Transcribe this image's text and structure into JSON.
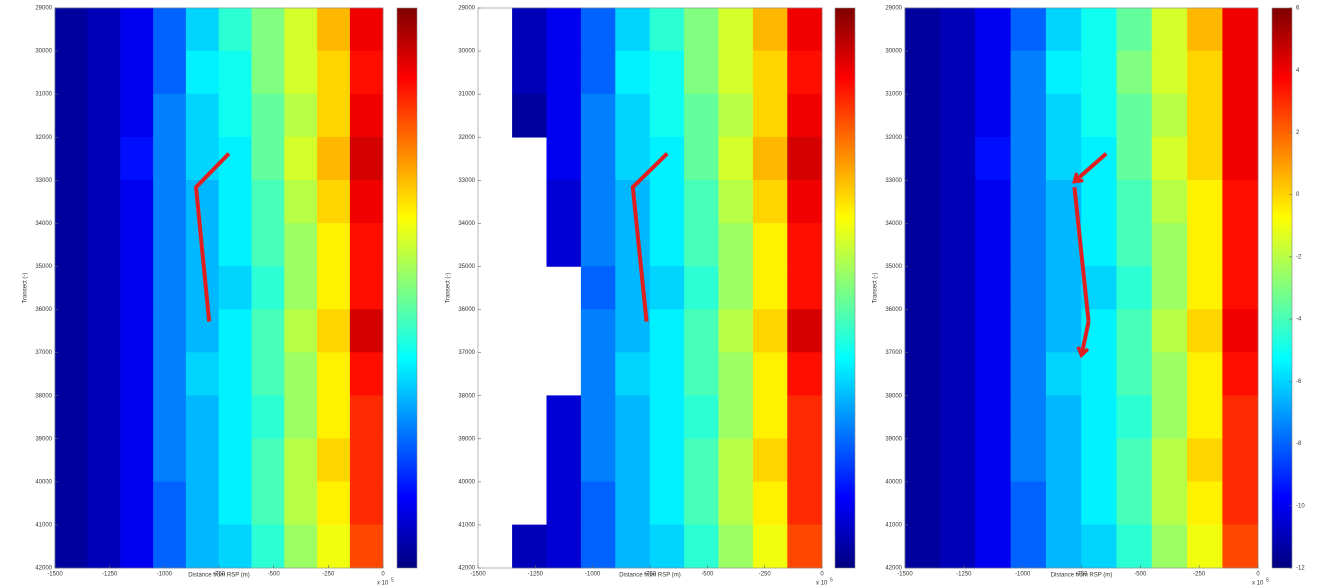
{
  "chart_data": [
    {
      "type": "heatmap",
      "colormap": "jet",
      "y_reversed": true,
      "xlabel": "Distance from RSP (m)",
      "ylabel": "Transect (-)",
      "x_multiplier": "x 10",
      "x_exponent": "5",
      "xlim": [
        -1500,
        0
      ],
      "ylim": [
        29000,
        42000
      ],
      "zlim": [
        -12,
        6
      ],
      "xticks": [
        -1500,
        -1250,
        -1000,
        -750,
        -500,
        -250,
        0
      ],
      "yticks": [
        29000,
        30000,
        31000,
        32000,
        33000,
        34000,
        35000,
        36000,
        37000,
        38000,
        39000,
        40000,
        41000,
        42000
      ],
      "x": [
        -1425,
        -1275,
        -1125,
        -975,
        -825,
        -675,
        -525,
        -375,
        -225,
        -75
      ],
      "y": [
        29500,
        30500,
        31500,
        32500,
        33500,
        34500,
        35500,
        36500,
        37500,
        38500,
        39500,
        40500,
        41500
      ],
      "z": [
        [
          -11.5,
          -11,
          -10,
          -8,
          -6,
          -4.5,
          -3,
          -1.5,
          0.5,
          4
        ],
        [
          -11.5,
          -11,
          -10,
          -8,
          -5.5,
          -5,
          -3,
          -1.5,
          0,
          3.5
        ],
        [
          -11.5,
          -11,
          -10,
          -7.5,
          -6,
          -5,
          -3.5,
          -2,
          0,
          4
        ],
        [
          -11.5,
          -11,
          -9.5,
          -7.5,
          -6,
          -5.5,
          -3.5,
          -1.5,
          0.5,
          4.5
        ],
        [
          -11.5,
          -11,
          -10,
          -7.5,
          -6.5,
          -5.5,
          -4,
          -2,
          0,
          4
        ],
        [
          -11.5,
          -11,
          -10,
          -7.5,
          -6.5,
          -5.5,
          -4,
          -2.5,
          -0.5,
          3.5
        ],
        [
          -11.5,
          -11,
          -10,
          -7.5,
          -6.5,
          -6,
          -4.5,
          -2.5,
          -0.5,
          3.5
        ],
        [
          -11.5,
          -11,
          -10,
          -7.5,
          -6.5,
          -5.5,
          -4,
          -2,
          0,
          4.5
        ],
        [
          -11.5,
          -11,
          -10,
          -7.5,
          -6,
          -5.5,
          -4,
          -2.5,
          -0.5,
          3.5
        ],
        [
          -11.5,
          -11,
          -10,
          -7.5,
          -6.5,
          -5.5,
          -4.5,
          -2.5,
          -0.5,
          3
        ],
        [
          -11.5,
          -11,
          -10,
          -7.5,
          -6.5,
          -5.5,
          -4,
          -2,
          0,
          3
        ],
        [
          -11.5,
          -11,
          -10,
          -8,
          -6.5,
          -5.5,
          -4,
          -2,
          -0.5,
          3
        ],
        [
          -11.5,
          -11,
          -10,
          -8,
          -6.5,
          -6,
          -4.5,
          -2.5,
          -1,
          2.5
        ]
      ]
    },
    {
      "type": "heatmap",
      "colormap": "jet",
      "y_reversed": true,
      "xlabel": "Distance from RSP (m)",
      "ylabel": "Transect (-)",
      "x_multiplier": "x 10",
      "x_exponent": "5",
      "xlim": [
        -1500,
        0
      ],
      "ylim": [
        29000,
        42000
      ],
      "zlim": [
        -12,
        6
      ],
      "xticks": [
        -1500,
        -1250,
        -1000,
        -750,
        -500,
        -250,
        0
      ],
      "yticks": [
        29000,
        30000,
        31000,
        32000,
        33000,
        34000,
        35000,
        36000,
        37000,
        38000,
        39000,
        40000,
        41000,
        42000
      ],
      "x": [
        -1425,
        -1275,
        -1125,
        -975,
        -825,
        -675,
        -525,
        -375,
        -225,
        -75
      ],
      "y": [
        29500,
        30500,
        31500,
        32500,
        33500,
        34500,
        35500,
        36500,
        37500,
        38500,
        39500,
        40500,
        41500
      ],
      "z": [
        [
          null,
          -11,
          -10,
          -8,
          -6,
          -4.5,
          -3,
          -1.5,
          0.5,
          4
        ],
        [
          null,
          -11,
          -10,
          -8,
          -5.5,
          -5,
          -3,
          -1.5,
          0,
          3.5
        ],
        [
          null,
          -11.5,
          -10,
          -7.5,
          -6,
          -5,
          -3.5,
          -2,
          0,
          4
        ],
        [
          null,
          null,
          -10,
          -7.5,
          -6,
          -5.5,
          -3.5,
          -1.5,
          0.5,
          4.5
        ],
        [
          null,
          null,
          -10.5,
          -7.5,
          -6.5,
          -5.5,
          -4,
          -2,
          0,
          4
        ],
        [
          null,
          null,
          -10.5,
          -7.5,
          -6.5,
          -5.5,
          -4,
          -2.5,
          -0.5,
          3.5
        ],
        [
          null,
          null,
          null,
          -8,
          -6.5,
          -6,
          -4.5,
          -2.5,
          -0.5,
          3.5
        ],
        [
          null,
          null,
          null,
          -7.5,
          -6.5,
          -5.5,
          -4,
          -2,
          0,
          4.5
        ],
        [
          null,
          null,
          null,
          -7.5,
          -6,
          -5.5,
          -4,
          -2.5,
          -0.5,
          3.5
        ],
        [
          null,
          null,
          -10.5,
          -7.5,
          -6.5,
          -5.5,
          -4.5,
          -2.5,
          -0.5,
          3
        ],
        [
          null,
          null,
          -10.5,
          -7.5,
          -6.5,
          -5.5,
          -4,
          -2,
          0,
          3
        ],
        [
          null,
          null,
          -10.5,
          -8,
          -6.5,
          -5.5,
          -4,
          -2,
          -0.5,
          3
        ],
        [
          null,
          -11,
          -10.5,
          -8,
          -6.5,
          -6,
          -4.5,
          -2.5,
          -1,
          2.5
        ]
      ]
    },
    {
      "type": "heatmap",
      "colormap": "jet",
      "y_reversed": true,
      "xlabel": "Distance from RSP (m)",
      "ylabel": "Transect (-)",
      "x_multiplier": "x 10",
      "x_exponent": "5",
      "xlim": [
        -1500,
        0
      ],
      "ylim": [
        29000,
        42000
      ],
      "zlim": [
        -12,
        6
      ],
      "xticks": [
        -1500,
        -1250,
        -1000,
        -750,
        -500,
        -250,
        0
      ],
      "yticks": [
        29000,
        30000,
        31000,
        32000,
        33000,
        34000,
        35000,
        36000,
        37000,
        38000,
        39000,
        40000,
        41000,
        42000
      ],
      "zticks": [
        -12,
        -10,
        -8,
        -6,
        -4,
        -2,
        0,
        2,
        4,
        6
      ],
      "x": [
        -1425,
        -1275,
        -1125,
        -975,
        -825,
        -675,
        -525,
        -375,
        -225,
        -75
      ],
      "y": [
        29500,
        30500,
        31500,
        32500,
        33500,
        34500,
        35500,
        36500,
        37500,
        38500,
        39500,
        40500,
        41500
      ],
      "z": [
        [
          -11.5,
          -11,
          -10,
          -8,
          -6,
          -5,
          -3.5,
          -1.5,
          0.5,
          4
        ],
        [
          -11.5,
          -11,
          -10,
          -7.5,
          -5.5,
          -5,
          -3,
          -1.5,
          0,
          4
        ],
        [
          -11.5,
          -11,
          -10,
          -7.5,
          -6,
          -5,
          -3.5,
          -2,
          0,
          4
        ],
        [
          -11.5,
          -11,
          -9.5,
          -7.5,
          -6,
          -5.5,
          -3.5,
          -1.5,
          0,
          4
        ],
        [
          -11.5,
          -11,
          -10,
          -7.5,
          -6.5,
          -5.5,
          -4,
          -2,
          -0.5,
          3.5
        ],
        [
          -11.5,
          -11,
          -10,
          -7.5,
          -6.5,
          -5.5,
          -4,
          -2.5,
          -0.5,
          3.5
        ],
        [
          -11.5,
          -11,
          -10,
          -7.5,
          -6.5,
          -6,
          -4.5,
          -2.5,
          -0.5,
          3.5
        ],
        [
          -11.5,
          -11,
          -10,
          -7.5,
          -6.5,
          -5.5,
          -4,
          -2,
          0,
          4
        ],
        [
          -11.5,
          -11,
          -10,
          -7.5,
          -6,
          -5.5,
          -4,
          -2.5,
          -0.5,
          3.5
        ],
        [
          -11.5,
          -11,
          -10,
          -7.5,
          -6.5,
          -5.5,
          -4.5,
          -2.5,
          -0.5,
          3
        ],
        [
          -11.5,
          -11,
          -10,
          -7.5,
          -6.5,
          -5.5,
          -4,
          -2,
          0,
          3
        ],
        [
          -11.5,
          -11,
          -10,
          -8,
          -6.5,
          -5.5,
          -4,
          -2,
          -0.5,
          3
        ],
        [
          -11.5,
          -11,
          -10,
          -8,
          -6.5,
          -6,
          -4.5,
          -2.5,
          -1,
          2.5
        ]
      ]
    }
  ]
}
